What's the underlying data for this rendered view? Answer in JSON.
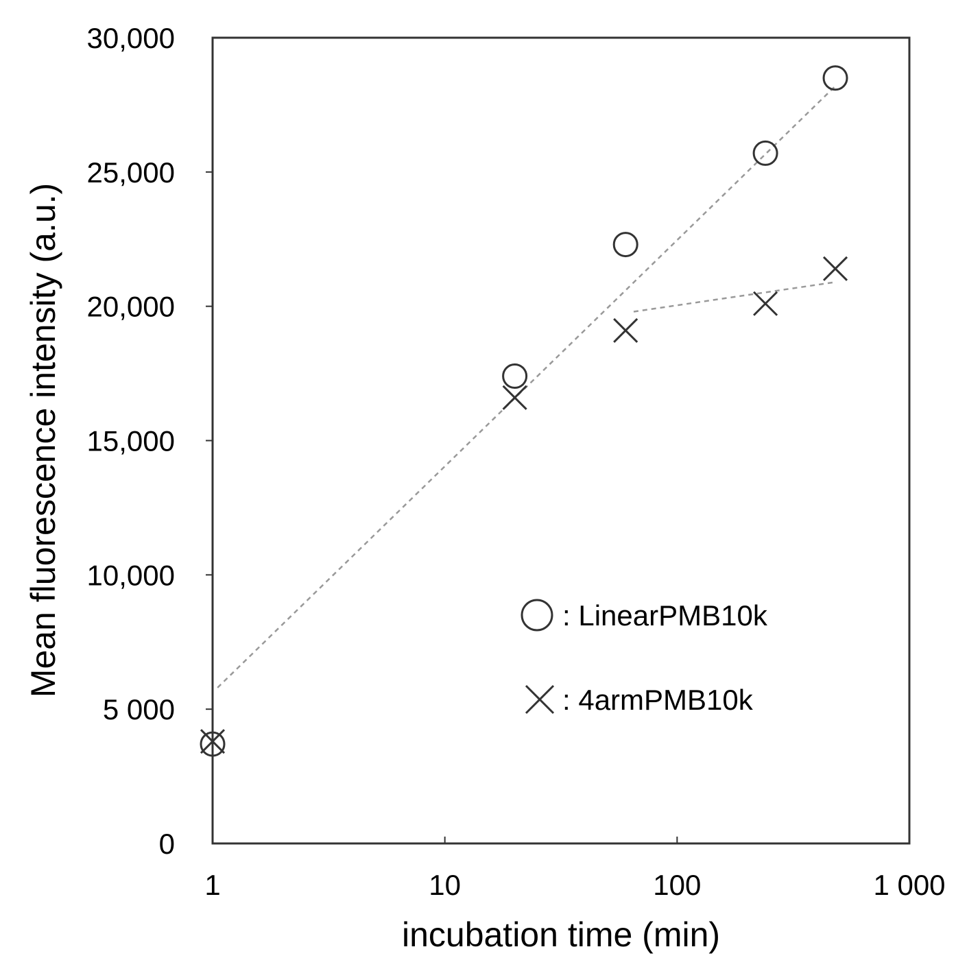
{
  "chart_data": {
    "type": "scatter",
    "xlabel": "incubation time (min)",
    "ylabel": "Mean fluorescence intensity (a.u.)",
    "xscale": "log",
    "xlim": [
      1,
      1000
    ],
    "ylim": [
      0,
      30000
    ],
    "xticks": [
      1,
      10,
      100,
      1000
    ],
    "xtick_labels": [
      "1",
      "10",
      "100",
      "1 000"
    ],
    "yticks": [
      0,
      5000,
      10000,
      15000,
      20000,
      25000,
      30000
    ],
    "ytick_labels": [
      "0",
      "5 000",
      "10,000",
      "15,000",
      "20,000",
      "25,000",
      "30,000"
    ],
    "grid": false,
    "legend_position": "center-right",
    "series": [
      {
        "name": "LinearPMB10k",
        "marker": "circle",
        "x": [
          1,
          20,
          60,
          240,
          480
        ],
        "y": [
          3700,
          17400,
          22300,
          25700,
          28500
        ],
        "trendline": {
          "x": [
            1.05,
            480
          ],
          "y": [
            5800,
            28200
          ]
        }
      },
      {
        "name": "4armPMB10k",
        "marker": "x",
        "x": [
          1,
          20,
          60,
          240,
          480
        ],
        "y": [
          3800,
          16600,
          19100,
          20100,
          21400
        ],
        "trendline": {
          "x": [
            65,
            480
          ],
          "y": [
            19800,
            20900
          ]
        }
      }
    ],
    "legend": [
      {
        "marker": "circle",
        "label": ": LinearPMB10k"
      },
      {
        "marker": "x",
        "label": ": 4armPMB10k"
      }
    ],
    "colors": {
      "marker": "#333333",
      "axis": "#333333",
      "trendline": "#999999"
    }
  }
}
